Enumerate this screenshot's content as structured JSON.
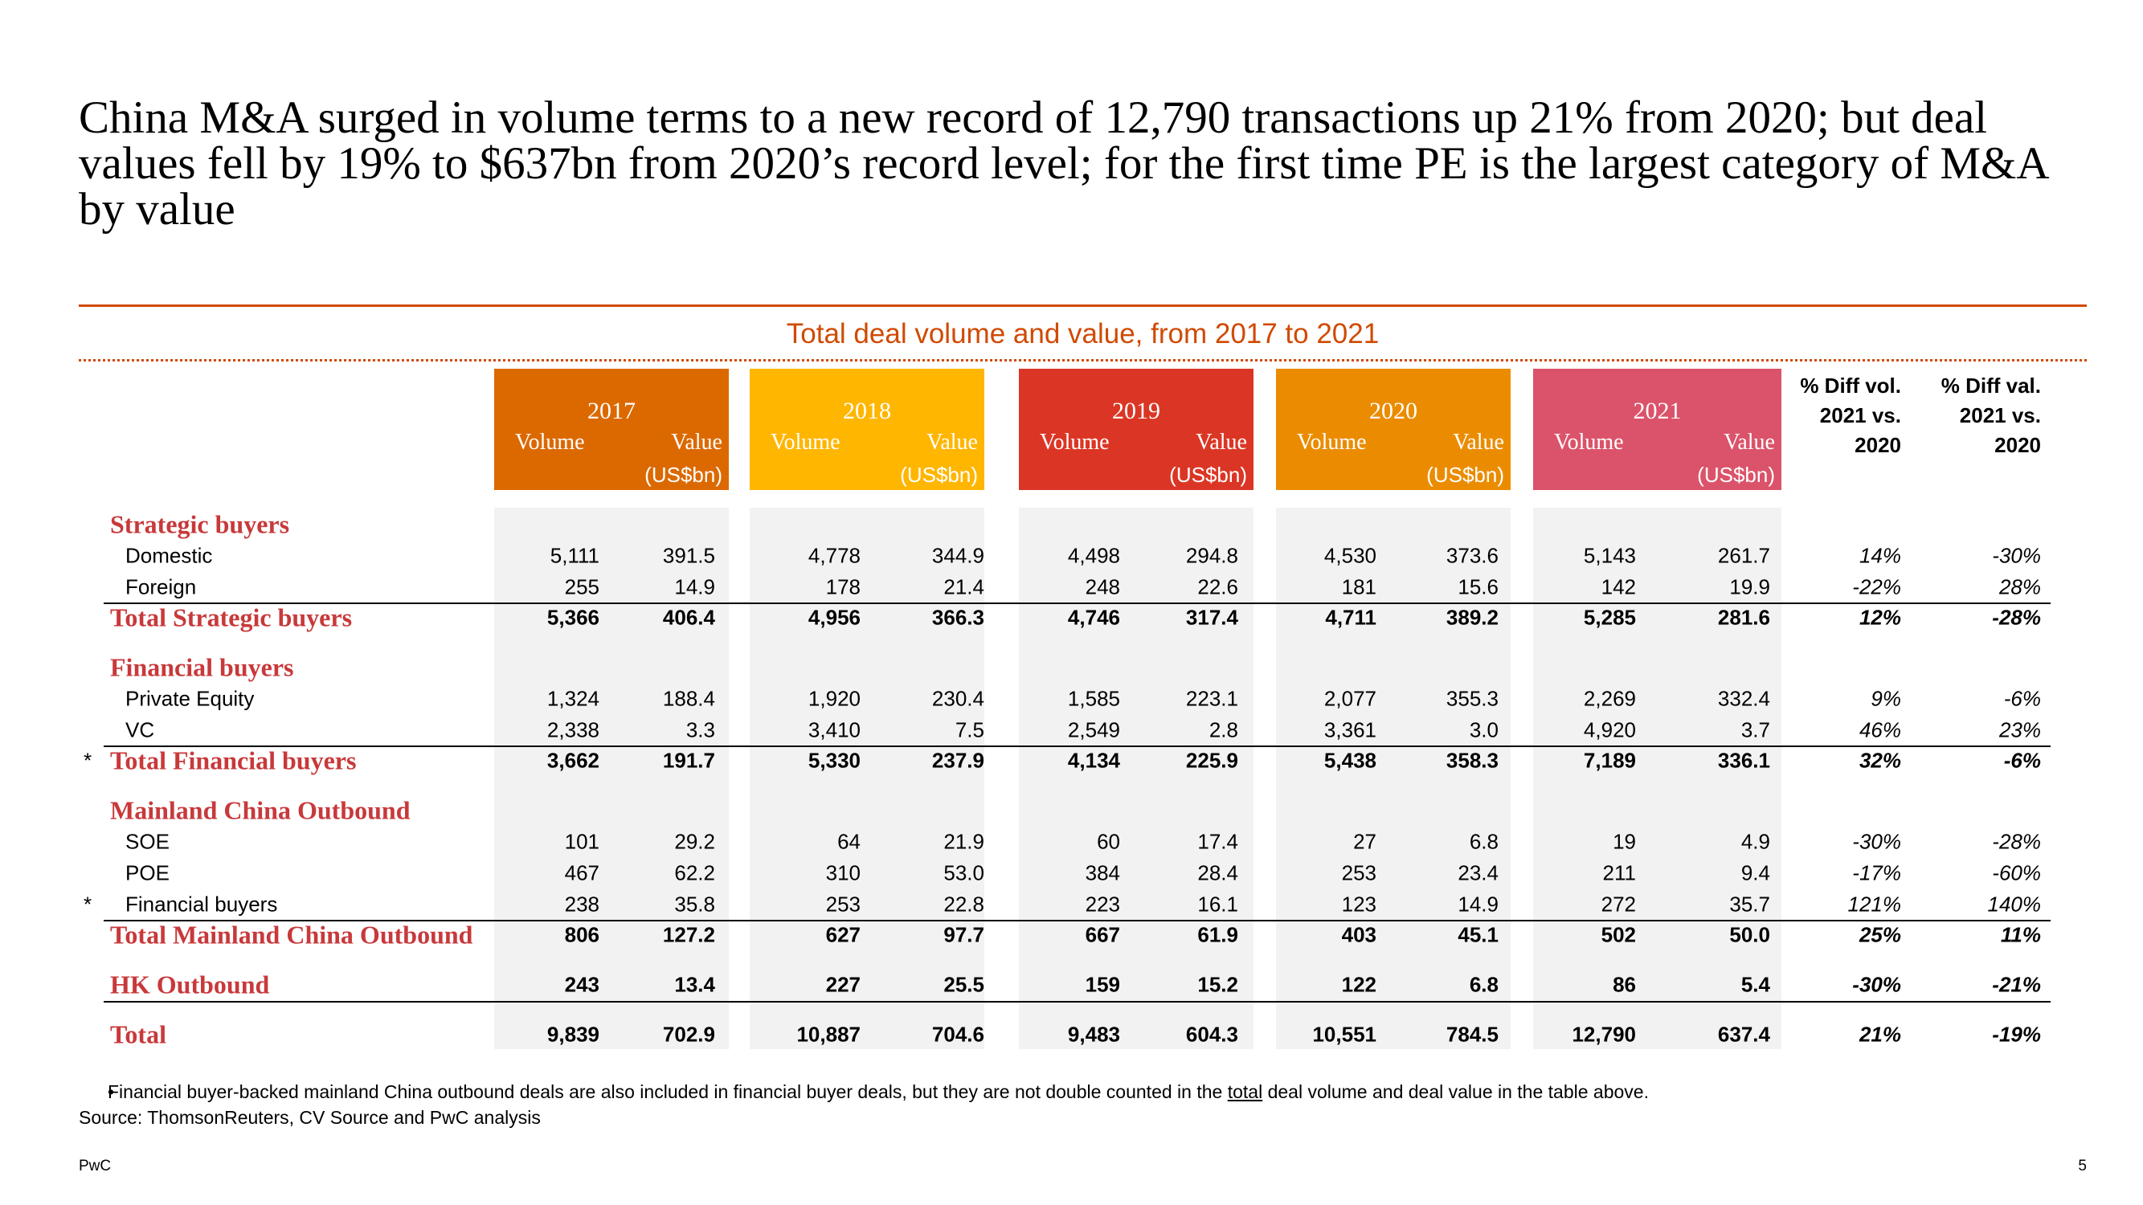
{
  "title": "China M&A surged in volume terms to a new record of 12,790 transactions up 21% from 2020; but deal values fell by 19% to $637bn from 2020’s record level; for the first time PE is the largest category of M&A by value",
  "subtitle": "Total deal volume and value, from 2017 to 2021",
  "table": {
    "years": [
      {
        "year": "2017",
        "volume": "Volume",
        "value": "Value",
        "unit": "(US$bn)",
        "color": "#dc6900"
      },
      {
        "year": "2018",
        "volume": "Volume",
        "value": "Value",
        "unit": "(US$bn)",
        "color": "#ffb600"
      },
      {
        "year": "2019",
        "volume": "Volume",
        "value": "Value",
        "unit": "(US$bn)",
        "color": "#db3625"
      },
      {
        "year": "2020",
        "volume": "Volume",
        "value": "Value",
        "unit": "(US$bn)",
        "color": "#eb8c00"
      },
      {
        "year": "2021",
        "volume": "Volume",
        "value": "Value",
        "unit": "(US$bn)",
        "color": "#db536a"
      }
    ],
    "diff_headers": [
      [
        "% Diff vol.",
        "2021 vs.",
        "2020"
      ],
      [
        "% Diff val.",
        "2021 vs.",
        "2020"
      ]
    ],
    "groups": [
      {
        "heading": "Strategic buyers",
        "items": [
          {
            "label": "Domestic",
            "cells": [
              "5,111",
              "391.5",
              "4,778",
              "344.9",
              "4,498",
              "294.8",
              "4,530",
              "373.6",
              "5,143",
              "261.7",
              "14%",
              "-30%"
            ]
          },
          {
            "label": "Foreign",
            "cells": [
              "255",
              "14.9",
              "178",
              "21.4",
              "248",
              "22.6",
              "181",
              "15.6",
              "142",
              "19.9",
              "-22%",
              "28%"
            ]
          }
        ],
        "total": {
          "label": "Total Strategic buyers",
          "cells": [
            "5,366",
            "406.4",
            "4,956",
            "366.3",
            "4,746",
            "317.4",
            "4,711",
            "389.2",
            "5,285",
            "281.6",
            "12%",
            "-28%"
          ]
        }
      },
      {
        "heading": "Financial buyers",
        "items": [
          {
            "label": "Private Equity",
            "cells": [
              "1,324",
              "188.4",
              "1,920",
              "230.4",
              "1,585",
              "223.1",
              "2,077",
              "355.3",
              "2,269",
              "332.4",
              "9%",
              "-6%"
            ]
          },
          {
            "label": "VC",
            "cells": [
              "2,338",
              "3.3",
              "3,410",
              "7.5",
              "2,549",
              "2.8",
              "3,361",
              "3.0",
              "4,920",
              "3.7",
              "46%",
              "23%"
            ]
          }
        ],
        "total": {
          "marker": "*",
          "label": "Total Financial buyers",
          "cells": [
            "3,662",
            "191.7",
            "5,330",
            "237.9",
            "4,134",
            "225.9",
            "5,438",
            "358.3",
            "7,189",
            "336.1",
            "32%",
            "-6%"
          ]
        }
      },
      {
        "heading": "Mainland China Outbound",
        "items": [
          {
            "label": "SOE",
            "cells": [
              "101",
              "29.2",
              "64",
              "21.9",
              "60",
              "17.4",
              "27",
              "6.8",
              "19",
              "4.9",
              "-30%",
              "-28%"
            ]
          },
          {
            "label": "POE",
            "cells": [
              "467",
              "62.2",
              "310",
              "53.0",
              "384",
              "28.4",
              "253",
              "23.4",
              "211",
              "9.4",
              "-17%",
              "-60%"
            ]
          },
          {
            "marker": "*",
            "label": "Financial buyers",
            "cells": [
              "238",
              "35.8",
              "253",
              "22.8",
              "223",
              "16.1",
              "123",
              "14.9",
              "272",
              "35.7",
              "121%",
              "140%"
            ]
          }
        ],
        "total": {
          "label": "Total Mainland China Outbound",
          "cells": [
            "806",
            "127.2",
            "627",
            "97.7",
            "667",
            "61.9",
            "403",
            "45.1",
            "502",
            "50.0",
            "25%",
            "11%"
          ]
        }
      },
      {
        "total": {
          "label": "HK Outbound",
          "cells": [
            "243",
            "13.4",
            "227",
            "25.5",
            "159",
            "15.2",
            "122",
            "6.8",
            "86",
            "5.4",
            "-30%",
            "-21%"
          ]
        }
      }
    ],
    "grand_total": {
      "label": "Total",
      "cells": [
        "9,839",
        "702.9",
        "10,887",
        "704.6",
        "9,483",
        "604.3",
        "10,551",
        "784.5",
        "12,790",
        "637.4",
        "21%",
        "-19%"
      ]
    }
  },
  "footnote": [
    "Financial buyer-backed mainland China outbound deals are also included in financial buyer deals, but they are not double counted in the ",
    "total",
    " deal volume and deal value in the table above."
  ],
  "source": "Source: ThomsonReuters, CV Source and PwC analysis",
  "footer": "PwC",
  "page_number": "5"
}
